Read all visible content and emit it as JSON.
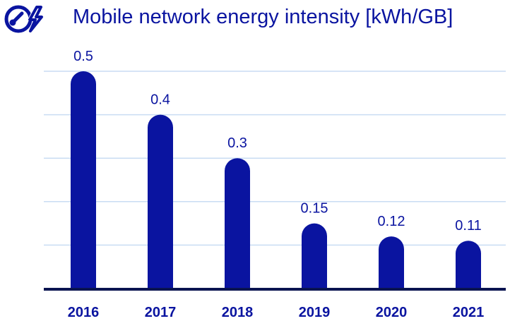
{
  "title": "Mobile network energy intensity [kWh/GB]",
  "logo_icon": "energy-meter-lightning-icon",
  "colors": {
    "bar": "#0a14a0",
    "text": "#0a14a0",
    "axis": "#0a1450",
    "grid": "#c9dcf3"
  },
  "chart_data": {
    "type": "bar",
    "title": "Mobile network energy intensity [kWh/GB]",
    "xlabel": "",
    "ylabel": "",
    "categories": [
      "2016",
      "2017",
      "2018",
      "2019",
      "2020",
      "2021"
    ],
    "values": [
      0.5,
      0.4,
      0.3,
      0.15,
      0.12,
      0.11
    ],
    "value_labels": [
      "0.5",
      "0.4",
      "0.3",
      "0.15",
      "0.12",
      "0.11"
    ],
    "ylim": [
      0,
      0.5
    ],
    "grid": true,
    "legend": "none"
  }
}
